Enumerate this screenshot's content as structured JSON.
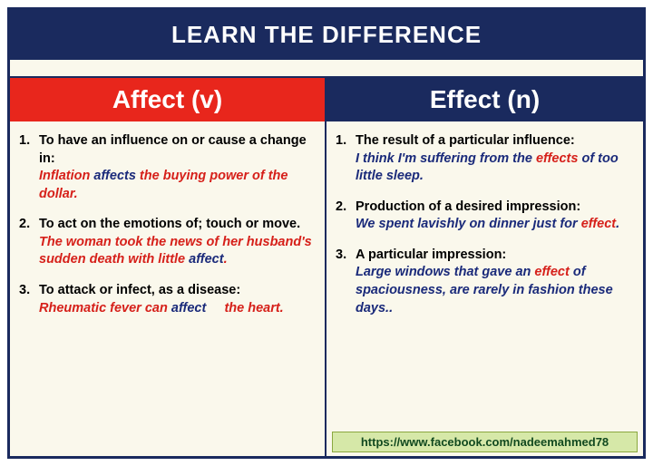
{
  "title": "LEARN THE DIFFERENCE",
  "colors": {
    "frame": "#1a2a5e",
    "background": "#faf8ec",
    "red_header": "#e8261c",
    "blue_header": "#1a2a5e",
    "example_red": "#d6201a",
    "example_blue": "#1a2a7a",
    "link_bg": "#d6e8a8",
    "link_border": "#8aa83f",
    "link_text": "#11491f"
  },
  "left": {
    "header": "Affect (v)",
    "items": [
      {
        "num": "1.",
        "def": "To have an influence on or cause a change in:",
        "ex_pre": "Inflation ",
        "ex_kw": "affects",
        "ex_post": " the buying power of the dollar."
      },
      {
        "num": "2.",
        "def": "To act on the emotions of; touch or move.",
        "ex_pre": "The woman took the news of her husband's sudden death with little ",
        "ex_kw": "affect",
        "ex_post": "."
      },
      {
        "num": "3.",
        "def": "To attack or infect, as a disease:",
        "ex_pre": "Rheumatic fever can ",
        "ex_kw": "affect",
        "ex_post": "     the heart."
      }
    ]
  },
  "right": {
    "header": "Effect (n)",
    "items": [
      {
        "num": "1.",
        "def": "The result of a particular influence:",
        "ex_pre": "I think I'm suffering from the ",
        "ex_kw": "effects",
        "ex_post": " of too little sleep."
      },
      {
        "num": "2.",
        "def": "Production of a desired impression:",
        "ex_pre": "We spent lavishly on dinner just for ",
        "ex_kw": "effect",
        "ex_post": "."
      },
      {
        "num": "3.",
        "def": "A particular impression:",
        "ex_pre": "Large windows that gave an ",
        "ex_kw": "effect",
        "ex_post": " of spaciousness, are rarely in fashion these days.."
      }
    ]
  },
  "footer_link": "https://www.facebook.com/nadeemahmed78"
}
